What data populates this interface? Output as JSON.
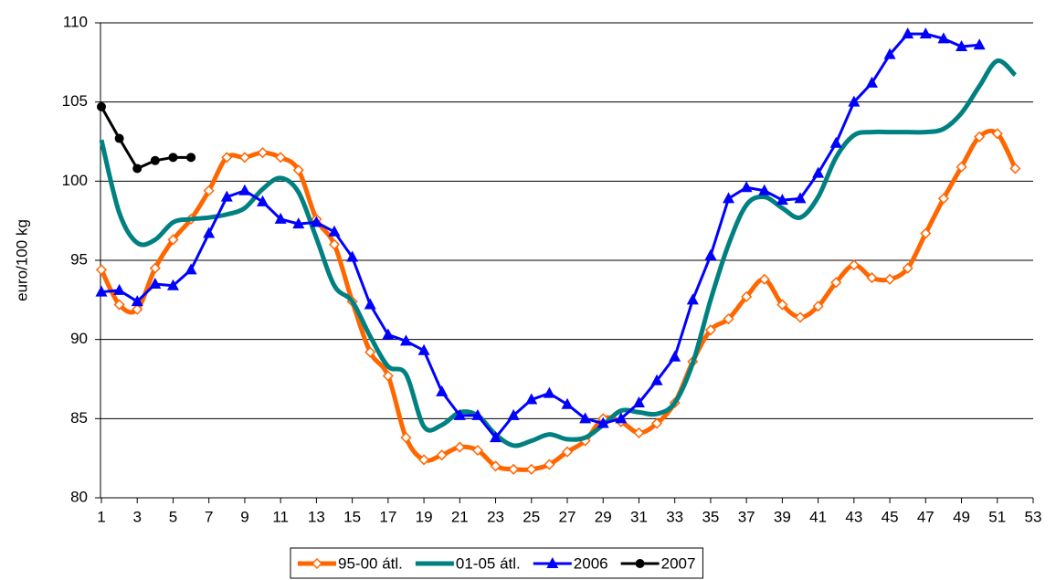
{
  "chart_data": {
    "type": "line",
    "y_label": "euro/100 kg",
    "x": [
      1,
      2,
      3,
      4,
      5,
      6,
      7,
      8,
      9,
      10,
      11,
      12,
      13,
      14,
      15,
      16,
      17,
      18,
      19,
      20,
      21,
      22,
      23,
      24,
      25,
      26,
      27,
      28,
      29,
      30,
      31,
      32,
      33,
      34,
      35,
      36,
      37,
      38,
      39,
      40,
      41,
      42,
      43,
      44,
      45,
      46,
      47,
      48,
      49,
      50,
      51,
      52
    ],
    "xlim": [
      1,
      53
    ],
    "xticks": [
      1,
      3,
      5,
      7,
      9,
      11,
      13,
      15,
      17,
      19,
      21,
      23,
      25,
      27,
      29,
      31,
      33,
      35,
      37,
      39,
      41,
      43,
      45,
      47,
      49,
      51,
      53
    ],
    "ylim": [
      80,
      110
    ],
    "yticks": [
      80,
      85,
      90,
      95,
      100,
      105,
      110
    ],
    "grid": true,
    "legend": "bottom",
    "series": [
      {
        "name": "95-00 átl.",
        "color": "#FF6600",
        "marker": "diamond",
        "smooth": true,
        "values": [
          94.4,
          92.2,
          91.9,
          94.5,
          96.3,
          97.6,
          99.4,
          101.5,
          101.5,
          101.8,
          101.5,
          100.7,
          97.6,
          96.0,
          92.4,
          89.2,
          87.7,
          83.8,
          82.4,
          82.7,
          83.2,
          83.0,
          82.0,
          81.8,
          81.8,
          82.1,
          82.9,
          83.6,
          85.0,
          84.8,
          84.1,
          84.7,
          86.0,
          88.6,
          90.6,
          91.3,
          92.7,
          93.8,
          92.2,
          91.4,
          92.1,
          93.6,
          94.7,
          93.9,
          93.8,
          94.5,
          96.7,
          98.9,
          100.9,
          102.8,
          103.0,
          100.8
        ]
      },
      {
        "name": "01-05 átl.",
        "color": "#008080",
        "marker": "none",
        "smooth": true,
        "values": [
          102.6,
          98.0,
          96.1,
          96.3,
          97.4,
          97.6,
          97.7,
          97.9,
          98.3,
          99.5,
          100.2,
          99.3,
          96.4,
          93.4,
          92.4,
          90.2,
          88.3,
          87.8,
          84.5,
          84.6,
          85.4,
          85.2,
          84.0,
          83.3,
          83.6,
          84.0,
          83.7,
          83.8,
          84.6,
          85.5,
          85.4,
          85.3,
          86.0,
          88.5,
          92.5,
          96.0,
          98.5,
          99.0,
          98.3,
          97.7,
          99.0,
          101.5,
          102.9,
          103.1,
          103.1,
          103.1,
          103.1,
          103.3,
          104.3,
          106.0,
          107.6,
          106.7
        ]
      },
      {
        "name": "2006",
        "color": "#0000FF",
        "marker": "triangle",
        "smooth": false,
        "values": [
          93.0,
          93.1,
          92.4,
          93.5,
          93.4,
          94.4,
          96.7,
          99.0,
          99.4,
          98.7,
          97.6,
          97.3,
          97.4,
          96.8,
          95.2,
          92.2,
          90.3,
          89.9,
          89.3,
          86.7,
          85.2,
          85.2,
          83.8,
          85.2,
          86.2,
          86.6,
          85.9,
          85.0,
          84.7,
          85.0,
          86.0,
          87.4,
          88.9,
          92.5,
          95.3,
          98.9,
          99.6,
          99.4,
          98.8,
          98.9,
          100.5,
          102.4,
          105.0,
          106.2,
          108.0,
          109.3,
          109.3,
          109.0,
          108.5,
          108.6,
          null,
          null
        ]
      },
      {
        "name": "2007",
        "color": "#000000",
        "marker": "circle",
        "smooth": false,
        "values": [
          104.7,
          102.7,
          100.8,
          101.3,
          101.5,
          101.5,
          null,
          null,
          null,
          null,
          null,
          null,
          null,
          null,
          null,
          null,
          null,
          null,
          null,
          null,
          null,
          null,
          null,
          null,
          null,
          null,
          null,
          null,
          null,
          null,
          null,
          null,
          null,
          null,
          null,
          null,
          null,
          null,
          null,
          null,
          null,
          null,
          null,
          null,
          null,
          null,
          null,
          null,
          null,
          null,
          null,
          null
        ]
      }
    ]
  }
}
